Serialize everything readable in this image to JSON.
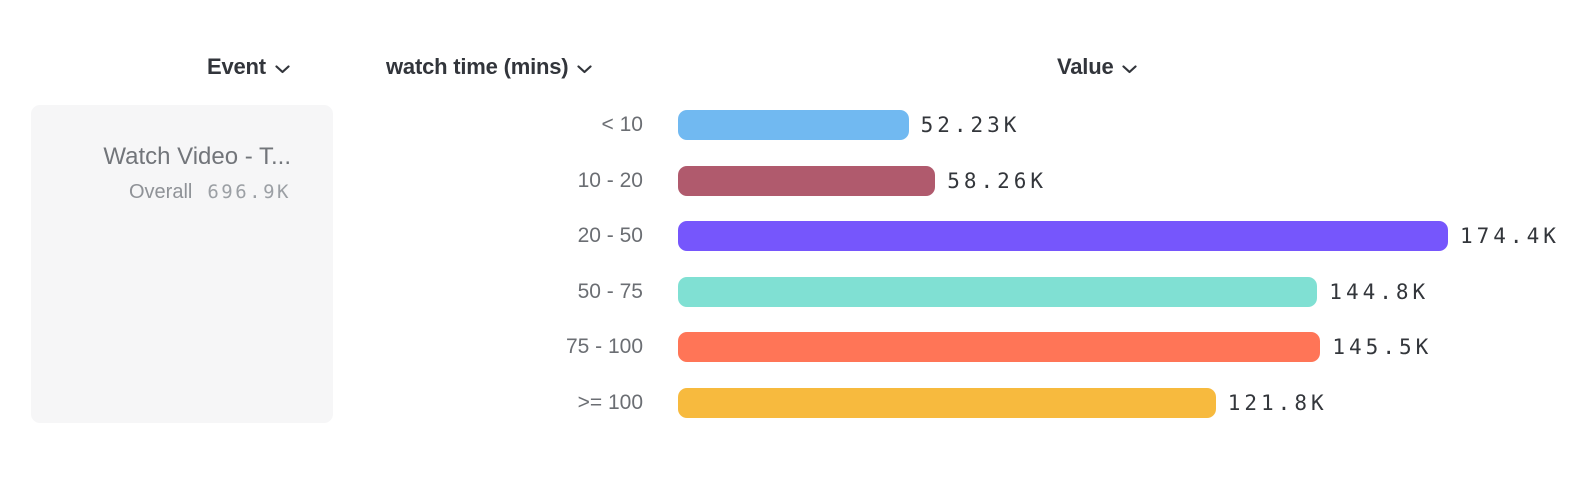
{
  "header": {
    "columns": [
      {
        "id": "event",
        "label": "Event"
      },
      {
        "id": "breakdown",
        "label": "watch time (mins)"
      },
      {
        "id": "value",
        "label": "Value"
      }
    ]
  },
  "event_card": {
    "title": "Watch Video - T...",
    "overall_label": "Overall",
    "overall_value": "696.9K"
  },
  "chart_data": {
    "type": "bar",
    "orientation": "horizontal",
    "title": "",
    "xlabel": "Value",
    "ylabel": "watch time (mins)",
    "grid": false,
    "legend": "none",
    "categories": [
      "< 10",
      "10 - 20",
      "20 - 50",
      "50 - 75",
      "75 - 100",
      ">= 100"
    ],
    "values": [
      52230,
      58260,
      174400,
      144800,
      145500,
      121800
    ],
    "value_labels": [
      "52.23K",
      "58.26K",
      "174.4K",
      "144.8K",
      "145.5K",
      "121.8K"
    ],
    "bar_colors": [
      "#71b9f1",
      "#b05a6d",
      "#7656fc",
      "#80e0d3",
      "#ff7557",
      "#f7ba3e"
    ],
    "xlim": [
      0,
      174400
    ],
    "overall_total": "696.9K"
  },
  "colors": {
    "card_background": "#f6f6f7",
    "header_text": "#32353b",
    "category_text": "#6b6e73",
    "value_text": "#33363b"
  }
}
